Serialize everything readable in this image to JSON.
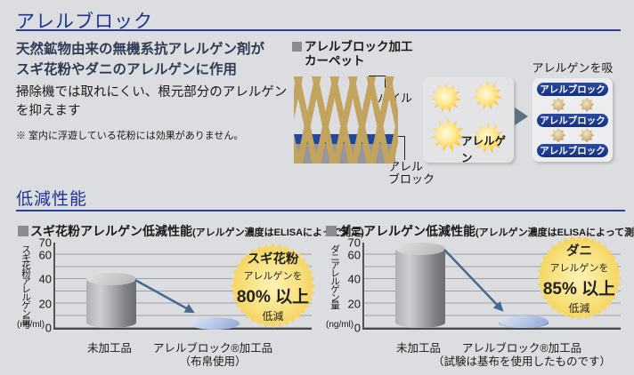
{
  "header": {
    "title": "アレルブロック"
  },
  "intro": {
    "lead1": "天然鉱物由来の無機系抗アレルゲン剤が",
    "lead2": "スギ花粉やダニのアレルゲンに作用",
    "body1": "掃除機では取れにくい、根元部分のアレルゲン",
    "body2": "を抑えます",
    "note": "※ 室内に浮遊している花粉には効果がありません。"
  },
  "carpet_diagram": {
    "legend1": "アレルブロック加工",
    "legend2": "カーペット",
    "pile_label": "パイル",
    "block_label1": "アレル",
    "block_label2": "ブロック"
  },
  "adsorption": {
    "caption": "アレルゲンを吸着",
    "allergen_label": "アレルゲン",
    "pill_label": "アレルブロック"
  },
  "performance": {
    "section_title": "低減性能"
  },
  "colors": {
    "accent_blue": "#1c3590",
    "pill_blue": "#1d3a92",
    "arrow_blue_gray": "#47698f",
    "flow_arrow_gray": "#5c7083",
    "bar_gray": "#97979b",
    "bar_blue": "#3b5ba8",
    "badge_yellow": "#f3ca48",
    "pile_tan": "#c3a45f",
    "block_layer_blue": "#1f47a0"
  },
  "chart_data": [
    {
      "type": "bar",
      "title": "スギ花粉アレルゲン低減性能",
      "subtitle": "(アレルゲン濃度はELISAによって測定)",
      "ylabel": "スギ花粉アレルゲン量",
      "yunit": "(ng/ml)",
      "ylim": [
        0,
        70
      ],
      "yticks": [
        0,
        20,
        40,
        60,
        70
      ],
      "grid_step": 10,
      "categories": [
        "未加工品",
        "アレルブロック®加工品"
      ],
      "category2_note": "（布帛使用）",
      "values": [
        40,
        3.5
      ],
      "badge": [
        "スギ花粉",
        "アレルゲンを",
        "80% 以上",
        "低減"
      ]
    },
    {
      "type": "bar",
      "title": "ダニアレルゲン低減性能",
      "subtitle": "(アレルゲン濃度はELISAによって測定)",
      "ylabel": "ダニアレルゲン量",
      "yunit": "(ng/ml)",
      "ylim": [
        0,
        70
      ],
      "yticks": [
        0,
        20,
        40,
        60,
        70
      ],
      "grid_step": 10,
      "categories": [
        "未加工品",
        "アレルブロック®加工品"
      ],
      "category2_note": "（試験は基布を使用したものです）",
      "values": [
        65,
        5
      ],
      "badge": [
        "ダニ",
        "アレルゲンを",
        "85% 以上",
        "低減"
      ]
    }
  ]
}
